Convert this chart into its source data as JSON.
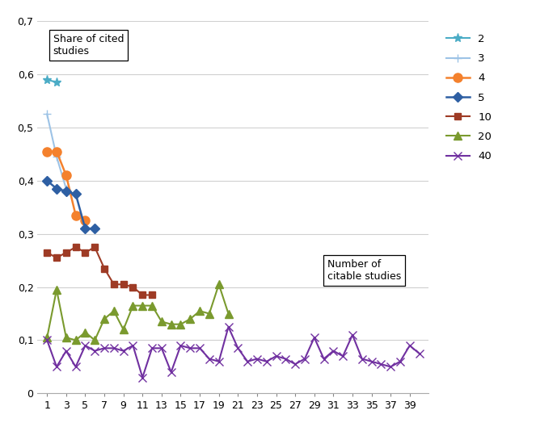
{
  "series": {
    "2": {
      "x": [
        1,
        2
      ],
      "y": [
        0.59,
        0.585
      ],
      "color": "#4bacc6",
      "marker": "*",
      "label": "2"
    },
    "3": {
      "x": [
        1,
        2,
        3
      ],
      "y": [
        0.525,
        0.445,
        0.385
      ],
      "color": "#9dc3e6",
      "marker": "+",
      "label": "3"
    },
    "4": {
      "x": [
        1,
        2,
        3,
        4,
        5
      ],
      "y": [
        0.455,
        0.455,
        0.41,
        0.335,
        0.325
      ],
      "color": "#f4812d",
      "marker": "o",
      "label": "4"
    },
    "5": {
      "x": [
        1,
        2,
        3,
        4,
        5,
        6
      ],
      "y": [
        0.4,
        0.385,
        0.38,
        0.375,
        0.31,
        0.31
      ],
      "color": "#2e5fa3",
      "marker": "D",
      "label": "5"
    },
    "10": {
      "x": [
        1,
        2,
        3,
        4,
        5,
        6,
        7,
        8,
        9,
        10,
        11,
        12
      ],
      "y": [
        0.265,
        0.255,
        0.265,
        0.275,
        0.265,
        0.275,
        0.235,
        0.205,
        0.205,
        0.2,
        0.185,
        0.185
      ],
      "color": "#9e3b25",
      "marker": "s",
      "label": "10"
    },
    "20": {
      "x": [
        1,
        2,
        3,
        4,
        5,
        6,
        7,
        8,
        9,
        10,
        11,
        12,
        13,
        14,
        15,
        16,
        17,
        18,
        19,
        20
      ],
      "y": [
        0.105,
        0.195,
        0.105,
        0.1,
        0.115,
        0.1,
        0.14,
        0.155,
        0.12,
        0.165,
        0.165,
        0.165,
        0.135,
        0.13,
        0.13,
        0.14,
        0.155,
        0.15,
        0.205,
        0.15
      ],
      "color": "#7a9a2e",
      "marker": "^",
      "label": "20"
    },
    "40": {
      "x": [
        1,
        2,
        3,
        4,
        5,
        6,
        7,
        8,
        9,
        10,
        11,
        12,
        13,
        14,
        15,
        16,
        17,
        18,
        19,
        20,
        21,
        22,
        23,
        24,
        25,
        26,
        27,
        28,
        29,
        30,
        31,
        32,
        33,
        34,
        35,
        36,
        37,
        38,
        39,
        40
      ],
      "y": [
        0.1,
        0.05,
        0.08,
        0.05,
        0.09,
        0.08,
        0.085,
        0.085,
        0.08,
        0.09,
        0.03,
        0.085,
        0.085,
        0.04,
        0.09,
        0.085,
        0.085,
        0.065,
        0.06,
        0.125,
        0.085,
        0.06,
        0.065,
        0.06,
        0.07,
        0.065,
        0.055,
        0.065,
        0.105,
        0.065,
        0.08,
        0.07,
        0.11,
        0.065,
        0.06,
        0.055,
        0.05,
        0.06,
        0.09,
        0.075
      ],
      "color": "#7030a0",
      "marker": "x",
      "label": "40"
    }
  },
  "xlim": [
    0,
    41
  ],
  "ylim": [
    0,
    0.7
  ],
  "yticks": [
    0,
    0.1,
    0.2,
    0.3,
    0.4,
    0.5,
    0.6,
    0.7
  ],
  "xticks": [
    1,
    3,
    5,
    7,
    9,
    11,
    13,
    15,
    17,
    19,
    21,
    23,
    25,
    27,
    29,
    31,
    33,
    35,
    37,
    39
  ],
  "ytick_labels": [
    "0",
    "0,1",
    "0,2",
    "0,3",
    "0,4",
    "0,5",
    "0,6",
    "0,7"
  ],
  "grid_color": "#d0d0d0",
  "background_color": "#ffffff",
  "legend_order": [
    "2",
    "3",
    "4",
    "5",
    "10",
    "20",
    "40"
  ],
  "marker_sizes": {
    "2": 8,
    "3": 7,
    "4": 8,
    "5": 6,
    "10": 6,
    "20": 7,
    "40": 7
  },
  "linewidths": {
    "2": 1.5,
    "3": 1.5,
    "4": 1.8,
    "5": 1.8,
    "10": 1.5,
    "20": 1.5,
    "40": 1.5
  }
}
